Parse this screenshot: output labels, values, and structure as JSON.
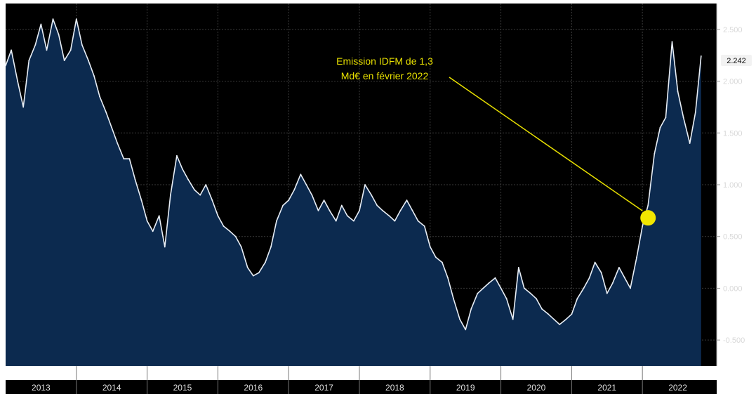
{
  "chart_data": {
    "type": "area",
    "title": "",
    "xlabel": "",
    "ylabel": "",
    "x_ticks": [
      "2013",
      "2014",
      "2015",
      "2016",
      "2017",
      "2018",
      "2019",
      "2020",
      "2021",
      "2022"
    ],
    "y_ticks": [
      "-0.500",
      "0.000",
      "0.500",
      "1.000",
      "1.500",
      "2.000",
      "2.500"
    ],
    "ylim": [
      -0.75,
      2.75
    ],
    "xlim": [
      2013.0,
      2023.05
    ],
    "grid": true,
    "last_value_label": "2.242",
    "series": [
      {
        "points": [
          [
            2013.0,
            2.15
          ],
          [
            2013.08,
            2.3
          ],
          [
            2013.17,
            2.0
          ],
          [
            2013.25,
            1.75
          ],
          [
            2013.33,
            2.2
          ],
          [
            2013.42,
            2.35
          ],
          [
            2013.5,
            2.55
          ],
          [
            2013.58,
            2.3
          ],
          [
            2013.67,
            2.6
          ],
          [
            2013.75,
            2.45
          ],
          [
            2013.83,
            2.2
          ],
          [
            2013.92,
            2.3
          ],
          [
            2014.0,
            2.6
          ],
          [
            2014.08,
            2.35
          ],
          [
            2014.17,
            2.2
          ],
          [
            2014.25,
            2.05
          ],
          [
            2014.33,
            1.85
          ],
          [
            2014.42,
            1.7
          ],
          [
            2014.5,
            1.55
          ],
          [
            2014.58,
            1.4
          ],
          [
            2014.67,
            1.25
          ],
          [
            2014.75,
            1.25
          ],
          [
            2014.83,
            1.05
          ],
          [
            2014.92,
            0.85
          ],
          [
            2015.0,
            0.65
          ],
          [
            2015.08,
            0.55
          ],
          [
            2015.17,
            0.7
          ],
          [
            2015.25,
            0.4
          ],
          [
            2015.33,
            0.9
          ],
          [
            2015.42,
            1.28
          ],
          [
            2015.5,
            1.15
          ],
          [
            2015.58,
            1.05
          ],
          [
            2015.67,
            0.95
          ],
          [
            2015.75,
            0.9
          ],
          [
            2015.83,
            1.0
          ],
          [
            2015.92,
            0.85
          ],
          [
            2016.0,
            0.7
          ],
          [
            2016.08,
            0.6
          ],
          [
            2016.17,
            0.55
          ],
          [
            2016.25,
            0.5
          ],
          [
            2016.33,
            0.4
          ],
          [
            2016.42,
            0.2
          ],
          [
            2016.5,
            0.12
          ],
          [
            2016.58,
            0.15
          ],
          [
            2016.67,
            0.25
          ],
          [
            2016.75,
            0.4
          ],
          [
            2016.83,
            0.65
          ],
          [
            2016.92,
            0.8
          ],
          [
            2017.0,
            0.85
          ],
          [
            2017.08,
            0.95
          ],
          [
            2017.17,
            1.1
          ],
          [
            2017.25,
            1.0
          ],
          [
            2017.33,
            0.9
          ],
          [
            2017.42,
            0.75
          ],
          [
            2017.5,
            0.85
          ],
          [
            2017.58,
            0.75
          ],
          [
            2017.67,
            0.65
          ],
          [
            2017.75,
            0.8
          ],
          [
            2017.83,
            0.7
          ],
          [
            2017.92,
            0.65
          ],
          [
            2018.0,
            0.75
          ],
          [
            2018.08,
            1.0
          ],
          [
            2018.17,
            0.9
          ],
          [
            2018.25,
            0.8
          ],
          [
            2018.33,
            0.75
          ],
          [
            2018.42,
            0.7
          ],
          [
            2018.5,
            0.65
          ],
          [
            2018.58,
            0.75
          ],
          [
            2018.67,
            0.85
          ],
          [
            2018.75,
            0.75
          ],
          [
            2018.83,
            0.65
          ],
          [
            2018.92,
            0.6
          ],
          [
            2019.0,
            0.4
          ],
          [
            2019.08,
            0.3
          ],
          [
            2019.17,
            0.25
          ],
          [
            2019.25,
            0.1
          ],
          [
            2019.33,
            -0.1
          ],
          [
            2019.42,
            -0.3
          ],
          [
            2019.5,
            -0.4
          ],
          [
            2019.58,
            -0.2
          ],
          [
            2019.67,
            -0.05
          ],
          [
            2019.75,
            0.0
          ],
          [
            2019.83,
            0.05
          ],
          [
            2019.92,
            0.1
          ],
          [
            2020.0,
            0.0
          ],
          [
            2020.08,
            -0.1
          ],
          [
            2020.17,
            -0.3
          ],
          [
            2020.25,
            0.2
          ],
          [
            2020.33,
            0.0
          ],
          [
            2020.42,
            -0.05
          ],
          [
            2020.5,
            -0.1
          ],
          [
            2020.58,
            -0.2
          ],
          [
            2020.67,
            -0.25
          ],
          [
            2020.75,
            -0.3
          ],
          [
            2020.83,
            -0.35
          ],
          [
            2020.92,
            -0.3
          ],
          [
            2021.0,
            -0.25
          ],
          [
            2021.08,
            -0.1
          ],
          [
            2021.17,
            0.0
          ],
          [
            2021.25,
            0.1
          ],
          [
            2021.33,
            0.25
          ],
          [
            2021.42,
            0.15
          ],
          [
            2021.5,
            -0.05
          ],
          [
            2021.58,
            0.05
          ],
          [
            2021.67,
            0.2
          ],
          [
            2021.75,
            0.1
          ],
          [
            2021.83,
            0.0
          ],
          [
            2021.92,
            0.3
          ],
          [
            2022.0,
            0.6
          ],
          [
            2022.08,
            0.8
          ],
          [
            2022.17,
            1.3
          ],
          [
            2022.25,
            1.55
          ],
          [
            2022.33,
            1.65
          ],
          [
            2022.42,
            2.38
          ],
          [
            2022.5,
            1.9
          ],
          [
            2022.58,
            1.65
          ],
          [
            2022.67,
            1.4
          ],
          [
            2022.75,
            1.7
          ],
          [
            2022.83,
            2.242
          ]
        ]
      }
    ],
    "annotation": {
      "lines": [
        "Emission IDFM de 1,3",
        "Md€ en février 2022"
      ],
      "marker_x": 2022.08,
      "marker_y": 0.68,
      "color": "#e8e000"
    },
    "colors": {
      "background": "#000000",
      "area_fill": "#0c2a4f",
      "line": "#e8eef6",
      "grid": "#3a3a3a",
      "x_band": "#000000",
      "annotation": "#e8e000"
    }
  }
}
